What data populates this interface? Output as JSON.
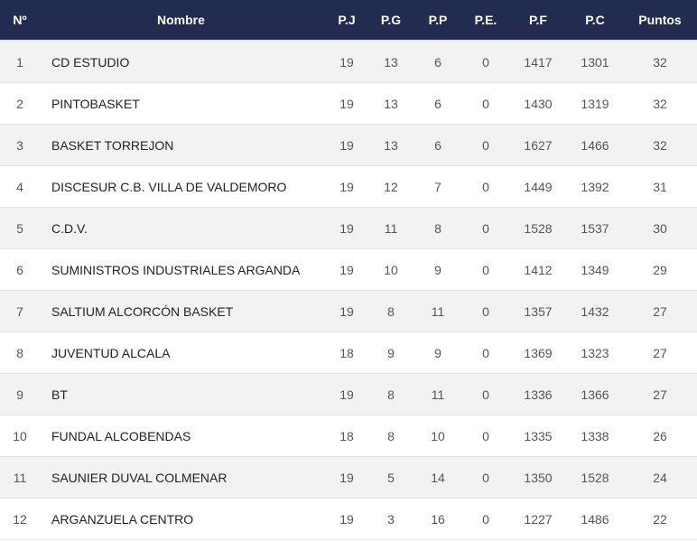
{
  "headers": {
    "pos": "Nº",
    "name": "Nombre",
    "pj": "P.J",
    "pg": "P.G",
    "pp": "P.P",
    "pe": "P.E.",
    "pf": "P.F",
    "pc": "P.C",
    "pts": "Puntos"
  },
  "rows": [
    {
      "pos": "1",
      "name": "CD ESTUDIO",
      "pj": "19",
      "pg": "13",
      "pp": "6",
      "pe": "0",
      "pf": "1417",
      "pc": "1301",
      "pts": "32"
    },
    {
      "pos": "2",
      "name": "PINTOBASKET",
      "pj": "19",
      "pg": "13",
      "pp": "6",
      "pe": "0",
      "pf": "1430",
      "pc": "1319",
      "pts": "32"
    },
    {
      "pos": "3",
      "name": "BASKET TORREJON",
      "pj": "19",
      "pg": "13",
      "pp": "6",
      "pe": "0",
      "pf": "1627",
      "pc": "1466",
      "pts": "32"
    },
    {
      "pos": "4",
      "name": "DISCESUR C.B. VILLA DE VALDEMORO",
      "pj": "19",
      "pg": "12",
      "pp": "7",
      "pe": "0",
      "pf": "1449",
      "pc": "1392",
      "pts": "31"
    },
    {
      "pos": "5",
      "name": "C.D.V.",
      "pj": "19",
      "pg": "11",
      "pp": "8",
      "pe": "0",
      "pf": "1528",
      "pc": "1537",
      "pts": "30"
    },
    {
      "pos": "6",
      "name": "SUMINISTROS INDUSTRIALES ARGANDA",
      "pj": "19",
      "pg": "10",
      "pp": "9",
      "pe": "0",
      "pf": "1412",
      "pc": "1349",
      "pts": "29"
    },
    {
      "pos": "7",
      "name": "SALTIUM ALCORCÓN BASKET",
      "pj": "19",
      "pg": "8",
      "pp": "11",
      "pe": "0",
      "pf": "1357",
      "pc": "1432",
      "pts": "27"
    },
    {
      "pos": "8",
      "name": "JUVENTUD ALCALA",
      "pj": "18",
      "pg": "9",
      "pp": "9",
      "pe": "0",
      "pf": "1369",
      "pc": "1323",
      "pts": "27"
    },
    {
      "pos": "9",
      "name": "BT",
      "pj": "19",
      "pg": "8",
      "pp": "11",
      "pe": "0",
      "pf": "1336",
      "pc": "1366",
      "pts": "27"
    },
    {
      "pos": "10",
      "name": "FUNDAL ALCOBENDAS",
      "pj": "18",
      "pg": "8",
      "pp": "10",
      "pe": "0",
      "pf": "1335",
      "pc": "1338",
      "pts": "26"
    },
    {
      "pos": "11",
      "name": "SAUNIER DUVAL COLMENAR",
      "pj": "19",
      "pg": "5",
      "pp": "14",
      "pe": "0",
      "pf": "1350",
      "pc": "1528",
      "pts": "24"
    },
    {
      "pos": "12",
      "name": "ARGANZUELA CENTRO",
      "pj": "19",
      "pg": "3",
      "pp": "16",
      "pe": "0",
      "pf": "1227",
      "pc": "1486",
      "pts": "22"
    }
  ]
}
